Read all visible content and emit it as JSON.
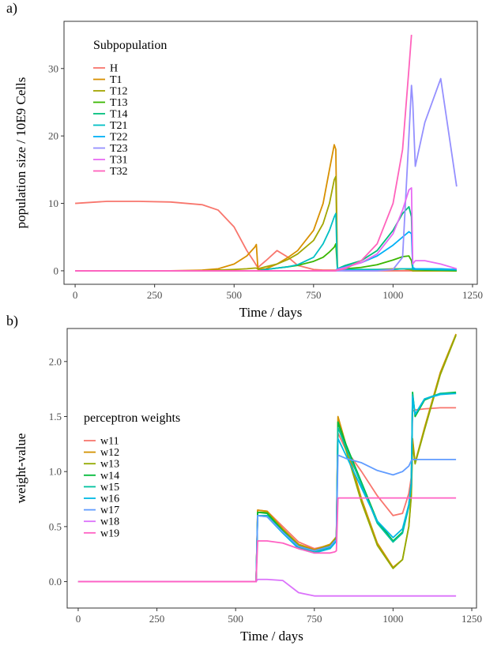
{
  "chart_data": [
    {
      "type": "line",
      "title": "a)",
      "x_label": "Time / days",
      "y_label": "population size / 10E9 Cells",
      "legend_title": "Subpopulation",
      "legend": "top-left",
      "grid": false,
      "xlim": [
        -35,
        1265
      ],
      "ylim": [
        -2,
        37
      ],
      "xticks": [
        0,
        250,
        500,
        750,
        1000,
        1250
      ],
      "yticks": [
        0,
        10,
        20,
        30
      ],
      "x": [
        0,
        100,
        200,
        300,
        400,
        450,
        500,
        540,
        565,
        570,
        575,
        600,
        635,
        670,
        700,
        750,
        780,
        800,
        815,
        820,
        825,
        850,
        900,
        950,
        1000,
        1030,
        1050,
        1058,
        1062,
        1070,
        1100,
        1150,
        1200
      ],
      "series": [
        {
          "name": "H",
          "color": "#F8766D",
          "values": [
            10,
            10.3,
            10.3,
            10.2,
            9.8,
            9,
            6.5,
            3,
            1.2,
            0.8,
            0.5,
            1.5,
            3,
            2,
            0.8,
            0.2,
            0.1,
            0.1,
            0.1,
            0.1,
            0.1,
            0,
            0,
            0,
            0,
            0,
            0,
            0,
            0,
            0,
            0,
            0,
            0
          ]
        },
        {
          "name": "T1",
          "color": "#D89000",
          "values": [
            0,
            0,
            0,
            0,
            0.1,
            0.3,
            1,
            2.2,
            3.5,
            3.9,
            0.2,
            0.3,
            1,
            2,
            3,
            6,
            10,
            15,
            18.7,
            18,
            0.1,
            0.1,
            0.1,
            0.1,
            0.2,
            0.3,
            0.2,
            0.1,
            0,
            0,
            0,
            0,
            0
          ]
        },
        {
          "name": "T12",
          "color": "#A3A500",
          "values": [
            0,
            0,
            0,
            0,
            0,
            0.1,
            0.2,
            0.3,
            0.4,
            0.4,
            0.3,
            0.6,
            1,
            1.7,
            2.5,
            4.5,
            7,
            10,
            13.5,
            14,
            0.2,
            0.2,
            0.2,
            0.2,
            0.3,
            0.3,
            0.2,
            0.1,
            0,
            0,
            0,
            0,
            0
          ]
        },
        {
          "name": "T13",
          "color": "#39B600",
          "values": [
            0,
            0,
            0,
            0,
            0,
            0,
            0,
            0,
            0,
            0,
            0,
            0.2,
            0.4,
            0.6,
            0.8,
            1.4,
            2,
            2.8,
            3.5,
            4,
            0.3,
            0.3,
            0.5,
            0.9,
            1.6,
            2.1,
            2.2,
            1.5,
            0.3,
            0.2,
            0.1,
            0.1,
            0
          ]
        },
        {
          "name": "T14",
          "color": "#00BF7D",
          "values": [
            0,
            0,
            0,
            0,
            0,
            0,
            0,
            0,
            0,
            0,
            0,
            0,
            0,
            0,
            0,
            0,
            0,
            0,
            0,
            0,
            0.3,
            0.8,
            1.5,
            3,
            6,
            8.5,
            9.5,
            8,
            0.3,
            0.2,
            0.2,
            0.1,
            0.1
          ]
        },
        {
          "name": "T21",
          "color": "#00BFC4",
          "values": [
            0,
            0,
            0,
            0,
            0,
            0,
            0,
            0,
            0,
            0,
            0,
            0.2,
            0.4,
            0.6,
            0.9,
            2,
            4,
            6,
            8,
            8.5,
            0.2,
            0.2,
            0.2,
            0.2,
            0.2,
            0.3,
            0.3,
            0.3,
            0.2,
            0.2,
            0.2,
            0.2,
            0.2
          ]
        },
        {
          "name": "T22",
          "color": "#00B0F6",
          "values": [
            0,
            0,
            0,
            0,
            0,
            0,
            0,
            0,
            0,
            0,
            0,
            0,
            0,
            0,
            0,
            0,
            0,
            0,
            0,
            0,
            0.3,
            0.6,
            1.2,
            2.2,
            3.8,
            5,
            5.8,
            5.5,
            0.5,
            0.3,
            0.3,
            0.3,
            0.2
          ]
        },
        {
          "name": "T23",
          "color": "#9590FF",
          "values": [
            0,
            0,
            0,
            0,
            0,
            0,
            0,
            0,
            0,
            0,
            0,
            0,
            0,
            0,
            0,
            0,
            0,
            0,
            0,
            0,
            0,
            0,
            0,
            0,
            0.2,
            2,
            20,
            27.5,
            25,
            15.5,
            22,
            28.5,
            12.5
          ]
        },
        {
          "name": "T31",
          "color": "#E76BF3",
          "values": [
            0,
            0,
            0,
            0,
            0,
            0,
            0,
            0,
            0,
            0,
            0,
            0,
            0,
            0,
            0,
            0,
            0,
            0,
            0,
            0,
            0.2,
            0.5,
            1.2,
            2.5,
            5.5,
            9,
            12,
            12.3,
            1,
            1.5,
            1.5,
            1,
            0.3
          ]
        },
        {
          "name": "T32",
          "color": "#FF62BC",
          "values": [
            0,
            0,
            0,
            0,
            0,
            0,
            0,
            0,
            0,
            0,
            0,
            0,
            0,
            0,
            0,
            0,
            0,
            0,
            0,
            0,
            0.1,
            0.3,
            1.5,
            4,
            10,
            18,
            30,
            35,
            null,
            null,
            null,
            null,
            null
          ]
        }
      ]
    },
    {
      "type": "line",
      "title": "b)",
      "x_label": "Time / days",
      "y_label": "weight-value",
      "legend_title": "perceptron weights",
      "legend": "middle-left",
      "grid": false,
      "xlim": [
        -35,
        1265
      ],
      "ylim": [
        -0.24,
        2.3
      ],
      "xticks": [
        0,
        250,
        500,
        750,
        1000,
        1250
      ],
      "yticks": [
        {
          "value": 0,
          "label": "0.0"
        },
        0.5,
        {
          "value": 1,
          "label": "1.0"
        },
        1.5,
        {
          "value": 2,
          "label": "2.0"
        }
      ],
      "x": [
        0,
        250,
        500,
        565,
        570,
        600,
        650,
        700,
        750,
        800,
        815,
        820,
        825,
        850,
        900,
        950,
        1000,
        1030,
        1050,
        1058,
        1062,
        1070,
        1100,
        1150,
        1200
      ],
      "series": [
        {
          "name": "w11",
          "color": "#F8766D",
          "values": [
            0,
            0,
            0,
            0,
            0.65,
            0.64,
            0.5,
            0.36,
            0.3,
            0.33,
            0.38,
            0.4,
            1.35,
            1.2,
            1.0,
            0.78,
            0.6,
            0.62,
            0.8,
            0.95,
            1.55,
            1.56,
            1.57,
            1.58,
            1.58
          ]
        },
        {
          "name": "w12",
          "color": "#D39200",
          "values": [
            0,
            0,
            0,
            0,
            0.65,
            0.64,
            0.48,
            0.34,
            0.29,
            0.34,
            0.39,
            0.41,
            1.5,
            1.25,
            0.75,
            0.35,
            0.13,
            0.2,
            0.5,
            0.8,
            1.3,
            1.08,
            1.4,
            1.9,
            2.25
          ]
        },
        {
          "name": "w13",
          "color": "#93AA00",
          "values": [
            0,
            0,
            0,
            0,
            0.63,
            0.63,
            0.47,
            0.33,
            0.28,
            0.33,
            0.38,
            0.4,
            1.45,
            1.2,
            0.72,
            0.33,
            0.12,
            0.2,
            0.5,
            0.78,
            1.25,
            1.07,
            1.38,
            1.88,
            2.24
          ]
        },
        {
          "name": "w14",
          "color": "#00BA38",
          "values": [
            0,
            0,
            0,
            0,
            0.63,
            0.62,
            0.46,
            0.32,
            0.28,
            0.32,
            0.37,
            0.39,
            1.45,
            1.25,
            0.9,
            0.55,
            0.37,
            0.45,
            0.7,
            0.9,
            1.72,
            1.5,
            1.65,
            1.71,
            1.72
          ]
        },
        {
          "name": "w15",
          "color": "#00C19F",
          "values": [
            0,
            0,
            0,
            0,
            0.6,
            0.6,
            0.45,
            0.31,
            0.27,
            0.31,
            0.36,
            0.38,
            1.4,
            1.22,
            0.88,
            0.53,
            0.36,
            0.44,
            0.68,
            0.88,
            1.7,
            1.52,
            1.66,
            1.71,
            1.71
          ]
        },
        {
          "name": "w16",
          "color": "#00B9E3",
          "values": [
            0,
            0,
            0,
            0,
            0.6,
            0.59,
            0.44,
            0.3,
            0.26,
            0.3,
            0.35,
            0.37,
            1.3,
            1.15,
            0.85,
            0.55,
            0.4,
            0.48,
            0.7,
            0.9,
            1.68,
            1.52,
            1.66,
            1.7,
            1.71
          ]
        },
        {
          "name": "w17",
          "color": "#619CFF",
          "values": [
            0,
            0,
            0,
            0,
            0.6,
            0.59,
            0.45,
            0.32,
            0.28,
            0.32,
            0.37,
            0.38,
            1.15,
            1.12,
            1.08,
            1.01,
            0.97,
            1.0,
            1.05,
            1.1,
            1.11,
            1.11,
            1.11,
            1.11,
            1.11
          ]
        },
        {
          "name": "w18",
          "color": "#DB72FB",
          "values": [
            0,
            0,
            0,
            0,
            0.02,
            0.02,
            0.01,
            -0.1,
            -0.13,
            -0.13,
            -0.13,
            -0.13,
            -0.13,
            -0.13,
            -0.13,
            -0.13,
            -0.13,
            -0.13,
            -0.13,
            -0.13,
            -0.13,
            -0.13,
            -0.13,
            -0.13,
            -0.13
          ]
        },
        {
          "name": "w19",
          "color": "#FF61C3",
          "values": [
            0,
            0,
            0,
            0,
            0.37,
            0.37,
            0.35,
            0.3,
            0.26,
            0.26,
            0.27,
            0.28,
            0.76,
            0.76,
            0.76,
            0.76,
            0.76,
            0.76,
            0.76,
            0.76,
            0.76,
            0.76,
            0.76,
            0.76,
            0.76
          ]
        }
      ]
    }
  ]
}
